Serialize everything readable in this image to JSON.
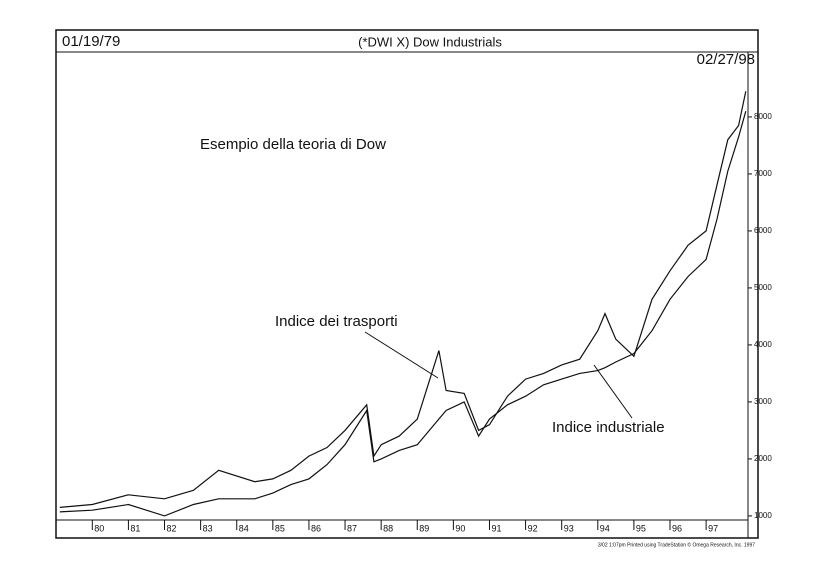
{
  "chart_data": {
    "type": "line",
    "title": "(*DWI X) Dow Industrials",
    "start_date": "01/19/79",
    "end_date": "02/27/98",
    "subtitle": "Esempio della teoria di Dow",
    "footer": "3/02 1:07pm Printed using TradeStation © Omega Research, Inc. 1997",
    "x": [
      1979.1,
      1980,
      1981,
      1982,
      1982.8,
      1983.5,
      1984.5,
      1985,
      1985.5,
      1986,
      1986.5,
      1987,
      1987.6,
      1987.8,
      1988,
      1988.5,
      1989,
      1989.6,
      1989.8,
      1990.3,
      1990.7,
      1991,
      1991.5,
      1992,
      1992.5,
      1993,
      1993.5,
      1994,
      1994.2,
      1994.5,
      1995,
      1995.5,
      1996,
      1996.5,
      1997,
      1997.3,
      1997.6,
      1997.9,
      1998.1
    ],
    "series": [
      {
        "name": "Indice dei trasporti",
        "color": "#111111",
        "values": [
          1150,
          1200,
          1370,
          1300,
          1450,
          1800,
          1600,
          1650,
          1800,
          2050,
          2200,
          2500,
          2950,
          2050,
          2250,
          2400,
          2700,
          3900,
          3200,
          3150,
          2500,
          2600,
          3100,
          3400,
          3500,
          3650,
          3750,
          4250,
          4550,
          4100,
          3800,
          4800,
          5300,
          5750,
          6000,
          6800,
          7600,
          7850,
          8450
        ]
      },
      {
        "name": "Indice industriale",
        "color": "#111111",
        "values": [
          1070,
          1100,
          1200,
          1000,
          1200,
          1300,
          1300,
          1400,
          1550,
          1650,
          1900,
          2250,
          2850,
          1950,
          2000,
          2150,
          2250,
          2700,
          2850,
          3000,
          2400,
          2700,
          2950,
          3100,
          3300,
          3400,
          3500,
          3550,
          3600,
          3700,
          3850,
          4250,
          4800,
          5200,
          5500,
          6200,
          7050,
          7650,
          8100
        ]
      }
    ],
    "xlim": [
      1979.05,
      1998.16
    ],
    "xticks": [
      {
        "value": 1980,
        "label": "80"
      },
      {
        "value": 1981,
        "label": "81"
      },
      {
        "value": 1982,
        "label": "82"
      },
      {
        "value": 1983,
        "label": "83"
      },
      {
        "value": 1984,
        "label": "84"
      },
      {
        "value": 1985,
        "label": "85"
      },
      {
        "value": 1986,
        "label": "86"
      },
      {
        "value": 1987,
        "label": "87"
      },
      {
        "value": 1988,
        "label": "88"
      },
      {
        "value": 1989,
        "label": "89"
      },
      {
        "value": 1990,
        "label": "90"
      },
      {
        "value": 1991,
        "label": "91"
      },
      {
        "value": 1992,
        "label": "92"
      },
      {
        "value": 1993,
        "label": "93"
      },
      {
        "value": 1994,
        "label": "94"
      },
      {
        "value": 1995,
        "label": "95"
      },
      {
        "value": 1996,
        "label": "96"
      },
      {
        "value": 1997,
        "label": "97"
      }
    ],
    "ylim": [
      700,
      9350
    ],
    "yticks": [
      1000,
      2000,
      3000,
      4000,
      5000,
      6000,
      7000,
      8000
    ]
  }
}
